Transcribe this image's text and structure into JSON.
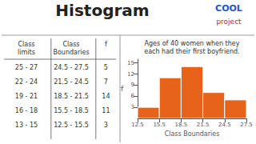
{
  "chart_data": {
    "type": "histogram",
    "title": "Histogram",
    "subtitle": "Ages of 40 women when they\neach had their first boyfriend.",
    "annotations": [
      {
        "text": "COOL",
        "color": "#2255cc"
      },
      {
        "text": "project",
        "color": "#cc2222"
      }
    ],
    "table": {
      "headers": [
        "Class\nlimits",
        "Class\nBoundaries",
        "f"
      ],
      "rows": [
        [
          "25 - 27",
          "24.5 - 27.5",
          "5"
        ],
        [
          "22 - 24",
          "21.5 - 24.5",
          "7"
        ],
        [
          "19 - 21",
          "18.5 - 21.5",
          "14"
        ],
        [
          "16 - 18",
          "15.5 - 18.5",
          "11"
        ],
        [
          "13 - 15",
          "12.5 - 15.5",
          "3"
        ]
      ]
    },
    "bins": [
      12.5,
      15.5,
      18.5,
      21.5,
      24.5,
      27.5
    ],
    "values": [
      3,
      11,
      14,
      7,
      5
    ],
    "color": "#e8631a",
    "xlabel": "Class Boundaries",
    "ylabel": "f",
    "xlim": [
      12.5,
      27.5
    ],
    "xticks": [
      12.5,
      15.5,
      18.5,
      21.5,
      24.5,
      27.5
    ],
    "ylim": [
      0,
      16
    ],
    "yticks": [
      3,
      6,
      9,
      12,
      15
    ],
    "grid": false
  }
}
